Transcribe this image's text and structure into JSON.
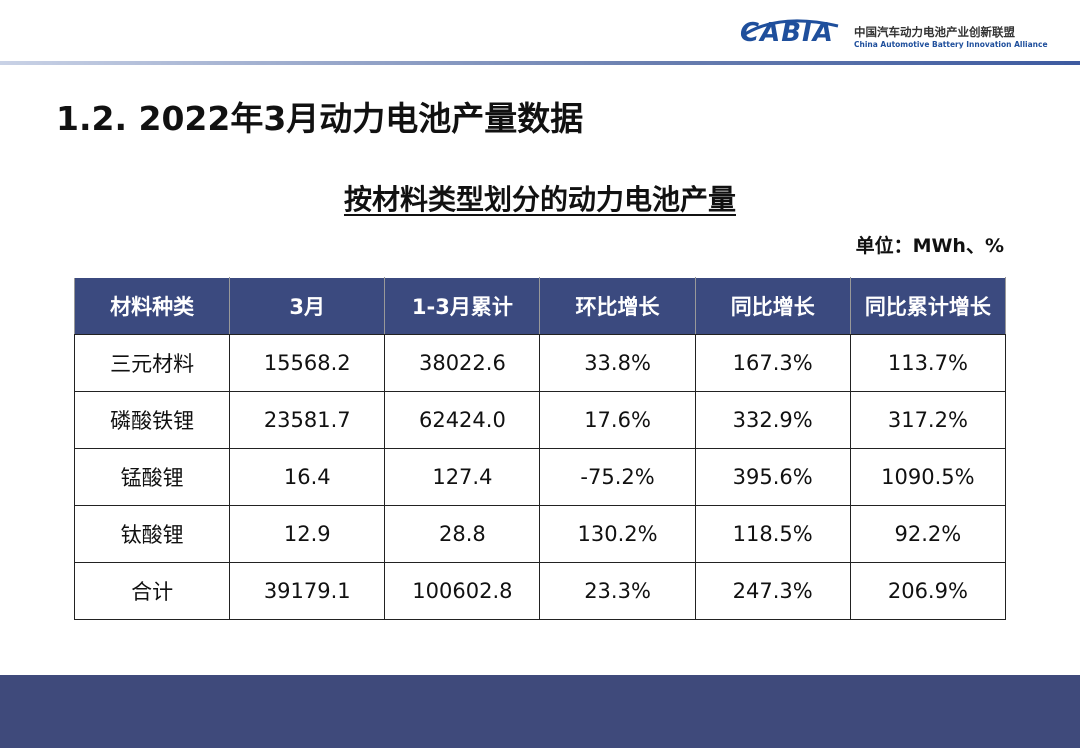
{
  "header": {
    "logo": "CABIA",
    "org_cn": "中国汽车动力电池产业创新联盟",
    "org_en": "China Automotive Battery Innovation Alliance"
  },
  "title": "1.2. 2022年3月动力电池产量数据",
  "subtitle": "按材料类型划分的动力电池产量",
  "unit": "单位：MWh、%",
  "table": {
    "columns": [
      "材料种类",
      "3月",
      "1-3月累计",
      "环比增长",
      "同比增长",
      "同比累计增长"
    ],
    "rows": [
      [
        "三元材料",
        "15568.2",
        "38022.6",
        "33.8%",
        "167.3%",
        "113.7%"
      ],
      [
        "磷酸铁锂",
        "23581.7",
        "62424.0",
        "17.6%",
        "332.9%",
        "317.2%"
      ],
      [
        "锰酸锂",
        "16.4",
        "127.4",
        "-75.2%",
        "395.6%",
        "1090.5%"
      ],
      [
        "钛酸锂",
        "12.9",
        "28.8",
        "130.2%",
        "118.5%",
        "92.2%"
      ],
      [
        "合计",
        "39179.1",
        "100602.8",
        "23.3%",
        "247.3%",
        "206.9%"
      ]
    ]
  }
}
